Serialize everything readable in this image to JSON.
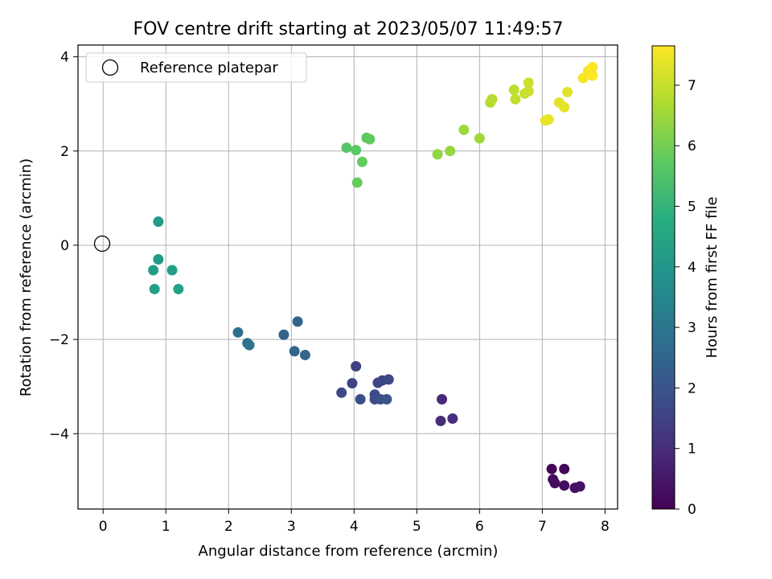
{
  "chart_data": {
    "type": "scatter",
    "title": "FOV centre drift starting at 2023/05/07 11:49:57",
    "xlabel": "Angular distance from reference (arcmin)",
    "ylabel": "Rotation from reference (arcmin)",
    "colorbar_label": "Hours from first FF file",
    "xlim": [
      -0.4,
      8.2
    ],
    "ylim": [
      -5.6,
      4.25
    ],
    "x_ticks": [
      0,
      1,
      2,
      3,
      4,
      5,
      6,
      7,
      8
    ],
    "y_ticks": [
      -4,
      -2,
      0,
      2,
      4
    ],
    "colorbar_range": [
      0,
      7.65
    ],
    "colorbar_ticks": [
      0,
      1,
      2,
      3,
      4,
      5,
      6,
      7
    ],
    "colormap": "viridis",
    "grid": true,
    "legend": {
      "position": "top-left",
      "label": "Reference platepar"
    },
    "reference_point": {
      "x": 0,
      "y": 0
    },
    "points": [
      {
        "x": 7.15,
        "y": -4.75,
        "t": 0.1
      },
      {
        "x": 7.35,
        "y": -4.75,
        "t": 0.15
      },
      {
        "x": 7.17,
        "y": -4.97,
        "t": 0.2
      },
      {
        "x": 7.2,
        "y": -5.05,
        "t": 0.25
      },
      {
        "x": 7.35,
        "y": -5.1,
        "t": 0.3
      },
      {
        "x": 7.52,
        "y": -5.15,
        "t": 0.35
      },
      {
        "x": 7.6,
        "y": -5.12,
        "t": 0.4
      },
      {
        "x": 5.4,
        "y": -3.27,
        "t": 0.9
      },
      {
        "x": 5.38,
        "y": -3.73,
        "t": 0.95
      },
      {
        "x": 5.57,
        "y": -3.68,
        "t": 1.0
      },
      {
        "x": 4.03,
        "y": -2.57,
        "t": 1.5
      },
      {
        "x": 3.97,
        "y": -2.93,
        "t": 1.55
      },
      {
        "x": 4.38,
        "y": -2.92,
        "t": 1.6
      },
      {
        "x": 4.45,
        "y": -2.87,
        "t": 1.6
      },
      {
        "x": 4.55,
        "y": -2.85,
        "t": 1.65
      },
      {
        "x": 3.8,
        "y": -3.13,
        "t": 1.7
      },
      {
        "x": 4.33,
        "y": -3.17,
        "t": 1.75
      },
      {
        "x": 4.1,
        "y": -3.27,
        "t": 1.8
      },
      {
        "x": 4.33,
        "y": -3.27,
        "t": 1.8
      },
      {
        "x": 4.42,
        "y": -3.27,
        "t": 1.85
      },
      {
        "x": 4.52,
        "y": -3.27,
        "t": 1.9
      },
      {
        "x": 2.88,
        "y": -1.9,
        "t": 2.4
      },
      {
        "x": 3.1,
        "y": -1.62,
        "t": 2.45
      },
      {
        "x": 3.05,
        "y": -2.25,
        "t": 2.5
      },
      {
        "x": 3.22,
        "y": -2.33,
        "t": 2.55
      },
      {
        "x": 2.15,
        "y": -1.85,
        "t": 2.8
      },
      {
        "x": 2.3,
        "y": -2.08,
        "t": 2.85
      },
      {
        "x": 2.33,
        "y": -2.12,
        "t": 2.9
      },
      {
        "x": 0.88,
        "y": 0.5,
        "t": 4.1
      },
      {
        "x": 0.88,
        "y": -0.3,
        "t": 4.15
      },
      {
        "x": 0.8,
        "y": -0.53,
        "t": 4.2
      },
      {
        "x": 1.1,
        "y": -0.53,
        "t": 4.25
      },
      {
        "x": 0.82,
        "y": -0.93,
        "t": 4.3
      },
      {
        "x": 1.2,
        "y": -0.93,
        "t": 4.35
      },
      {
        "x": 3.88,
        "y": 2.07,
        "t": 5.6
      },
      {
        "x": 4.03,
        "y": 2.02,
        "t": 5.65
      },
      {
        "x": 4.2,
        "y": 2.28,
        "t": 5.7
      },
      {
        "x": 4.25,
        "y": 2.25,
        "t": 5.75
      },
      {
        "x": 4.13,
        "y": 1.77,
        "t": 5.8
      },
      {
        "x": 4.05,
        "y": 1.33,
        "t": 5.85
      },
      {
        "x": 5.33,
        "y": 1.93,
        "t": 6.35
      },
      {
        "x": 5.53,
        "y": 2.0,
        "t": 6.4
      },
      {
        "x": 5.75,
        "y": 2.45,
        "t": 6.5
      },
      {
        "x": 6.0,
        "y": 2.27,
        "t": 6.55
      },
      {
        "x": 6.17,
        "y": 3.03,
        "t": 6.75
      },
      {
        "x": 6.2,
        "y": 3.1,
        "t": 6.8
      },
      {
        "x": 6.55,
        "y": 3.3,
        "t": 6.9
      },
      {
        "x": 6.57,
        "y": 3.1,
        "t": 6.95
      },
      {
        "x": 6.72,
        "y": 3.22,
        "t": 7.0
      },
      {
        "x": 6.78,
        "y": 3.45,
        "t": 7.05
      },
      {
        "x": 6.78,
        "y": 3.27,
        "t": 7.05
      },
      {
        "x": 7.05,
        "y": 2.65,
        "t": 7.35
      },
      {
        "x": 7.1,
        "y": 2.67,
        "t": 7.4
      },
      {
        "x": 7.27,
        "y": 3.03,
        "t": 7.3
      },
      {
        "x": 7.35,
        "y": 2.93,
        "t": 7.35
      },
      {
        "x": 7.4,
        "y": 3.25,
        "t": 7.3
      },
      {
        "x": 7.65,
        "y": 3.55,
        "t": 7.55
      },
      {
        "x": 7.73,
        "y": 3.7,
        "t": 7.6
      },
      {
        "x": 7.8,
        "y": 3.78,
        "t": 7.6
      },
      {
        "x": 7.8,
        "y": 3.6,
        "t": 7.65
      }
    ]
  }
}
